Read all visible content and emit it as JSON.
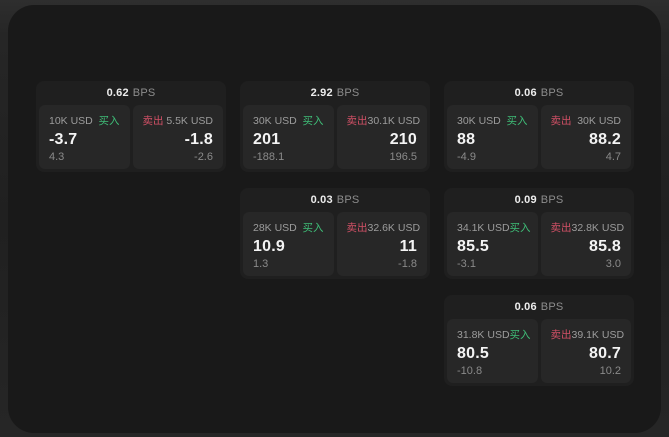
{
  "colors": {
    "buy_green": "#3fbe78",
    "sell_red": "#d15066",
    "panel_bg": "#191919",
    "card_bg": "#1f1f1f",
    "tile_bg": "#272727"
  },
  "cards": [
    {
      "grid": {
        "row": "1",
        "col": "1"
      },
      "bps_value": "0.62",
      "bps_unit": "BPS",
      "buy": {
        "amount": "10K USD",
        "action": "买入",
        "price": "-3.7",
        "delta": "4.3"
      },
      "sell": {
        "action": "卖出",
        "amount": "5.5K USD",
        "price": "-1.8",
        "delta": "-2.6"
      }
    },
    {
      "grid": {
        "row": "1",
        "col": "2"
      },
      "bps_value": "2.92",
      "bps_unit": "BPS",
      "buy": {
        "amount": "30K USD",
        "action": "买入",
        "price": "201",
        "delta": "-188.1"
      },
      "sell": {
        "action": "卖出",
        "amount": "30.1K USD",
        "price": "210",
        "delta": "196.5"
      }
    },
    {
      "grid": {
        "row": "1",
        "col": "3"
      },
      "bps_value": "0.06",
      "bps_unit": "BPS",
      "buy": {
        "amount": "30K USD",
        "action": "买入",
        "price": "88",
        "delta": "-4.9"
      },
      "sell": {
        "action": "卖出",
        "amount": "30K USD",
        "price": "88.2",
        "delta": "4.7"
      }
    },
    {
      "grid": {
        "row": "2",
        "col": "2"
      },
      "bps_value": "0.03",
      "bps_unit": "BPS",
      "buy": {
        "amount": "28K USD",
        "action": "买入",
        "price": "10.9",
        "delta": "1.3"
      },
      "sell": {
        "action": "卖出",
        "amount": "32.6K USD",
        "price": "11",
        "delta": "-1.8"
      }
    },
    {
      "grid": {
        "row": "2",
        "col": "3"
      },
      "bps_value": "0.09",
      "bps_unit": "BPS",
      "buy": {
        "amount": "34.1K USD",
        "action": "买入",
        "price": "85.5",
        "delta": "-3.1"
      },
      "sell": {
        "action": "卖出",
        "amount": "32.8K USD",
        "price": "85.8",
        "delta": "3.0"
      }
    },
    {
      "grid": {
        "row": "3",
        "col": "3"
      },
      "bps_value": "0.06",
      "bps_unit": "BPS",
      "buy": {
        "amount": "31.8K USD",
        "action": "买入",
        "price": "80.5",
        "delta": "-10.8"
      },
      "sell": {
        "action": "卖出",
        "amount": "39.1K USD",
        "price": "80.7",
        "delta": "10.2"
      }
    }
  ]
}
